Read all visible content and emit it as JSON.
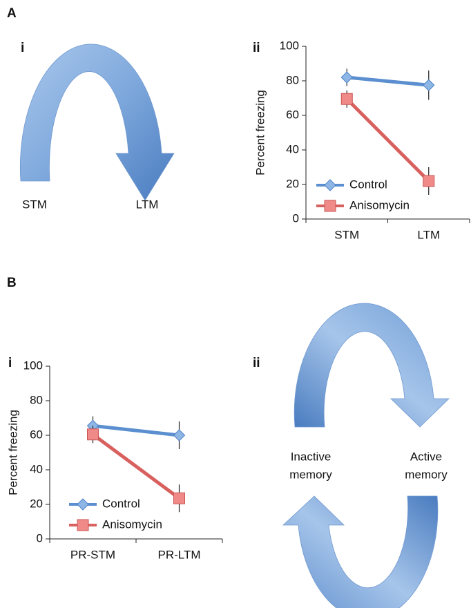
{
  "panels": {
    "A": "A",
    "A_i": "i",
    "A_ii": "ii",
    "B": "B",
    "B_i": "i",
    "B_ii": "ii"
  },
  "diagram_A": {
    "left": "STM",
    "right": "LTM"
  },
  "diagram_B": {
    "left": [
      "Inactive",
      "memory"
    ],
    "right": [
      "Active",
      "memory"
    ]
  },
  "chart_data": [
    {
      "type": "line",
      "categories": [
        "STM",
        "LTM"
      ],
      "ylabel": "Percent freezing",
      "ylim": [
        0,
        100
      ],
      "yticks": [
        0,
        20,
        40,
        60,
        80,
        100
      ],
      "legend": "lower left",
      "series": [
        {
          "name": "Control",
          "color": "#5b8fd0",
          "marker": "diamond",
          "values": [
            82,
            77.5
          ],
          "errors": [
            5,
            8.5
          ]
        },
        {
          "name": "Anisomycin",
          "color": "#d8605e",
          "marker": "square",
          "values": [
            69.5,
            22
          ],
          "errors": [
            5,
            8
          ]
        }
      ]
    },
    {
      "type": "line",
      "categories": [
        "PR-STM",
        "PR-LTM"
      ],
      "ylabel": "Percent freezing",
      "ylim": [
        0,
        100
      ],
      "yticks": [
        0,
        20,
        40,
        60,
        80,
        100
      ],
      "legend": "lower left",
      "series": [
        {
          "name": "Control",
          "color": "#5b8fd0",
          "marker": "diamond",
          "values": [
            65.5,
            60
          ],
          "errors": [
            5.5,
            8
          ]
        },
        {
          "name": "Anisomycin",
          "color": "#d8605e",
          "marker": "square",
          "values": [
            60.5,
            23.5
          ],
          "errors": [
            5,
            8
          ]
        }
      ]
    }
  ]
}
